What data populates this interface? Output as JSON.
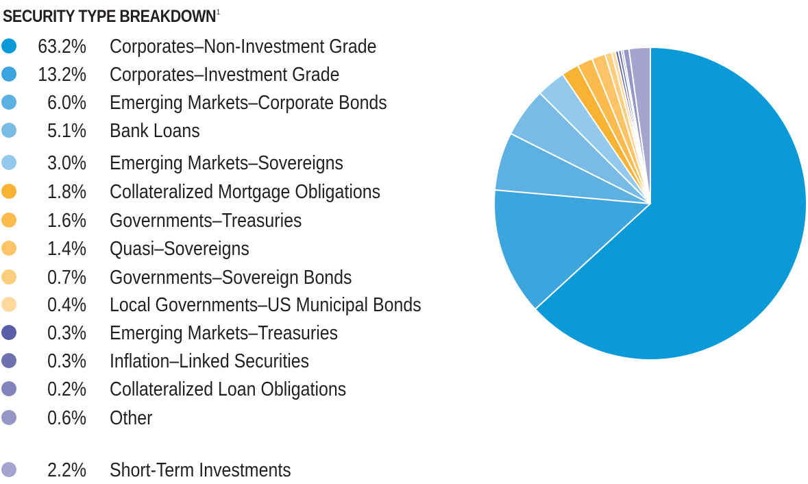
{
  "title": "SECURITY TYPE BREAKDOWN",
  "title_footnote": "1",
  "chart_data": {
    "type": "pie",
    "title": "SECURITY TYPE BREAKDOWN",
    "footnote_marker": "1",
    "legend_position": "left",
    "slices": [
      {
        "label": "Corporates–Non-Investment Grade",
        "value": 63.2,
        "display": "63.2%",
        "color": "#0b9ad8"
      },
      {
        "label": "Corporates–Investment Grade",
        "value": 13.2,
        "display": "13.2%",
        "color": "#3da5dd"
      },
      {
        "label": "Emerging Markets–Corporate Bonds",
        "value": 6.0,
        "display": "6.0%",
        "color": "#5cb0e2"
      },
      {
        "label": "Bank Loans",
        "value": 5.1,
        "display": "5.1%",
        "color": "#78bce6"
      },
      {
        "label": "Emerging Markets–Sovereigns",
        "value": 3.0,
        "display": "3.0%",
        "color": "#93c9ec"
      },
      {
        "label": "Collateralized Mortgage Obligations",
        "value": 1.8,
        "display": "1.8%",
        "color": "#f9b334"
      },
      {
        "label": "Governments–Treasuries",
        "value": 1.6,
        "display": "1.6%",
        "color": "#fbbb4e"
      },
      {
        "label": "Quasi–Sovereigns",
        "value": 1.4,
        "display": "1.4%",
        "color": "#fcc466"
      },
      {
        "label": "Governments–Sovereign Bonds",
        "value": 0.7,
        "display": "0.7%",
        "color": "#fdcd80"
      },
      {
        "label": "Local Governments–US Municipal Bonds",
        "value": 0.4,
        "display": "0.4%",
        "color": "#fed89c"
      },
      {
        "label": "Emerging Markets–Treasuries",
        "value": 0.3,
        "display": "0.3%",
        "color": "#5b5ea6"
      },
      {
        "label": "Inflation–Linked Securities",
        "value": 0.3,
        "display": "0.3%",
        "color": "#6f70b0"
      },
      {
        "label": "Collateralized Loan Obligations",
        "value": 0.2,
        "display": "0.2%",
        "color": "#8384bb"
      },
      {
        "label": "Other",
        "value": 0.6,
        "display": "0.6%",
        "color": "#9595c6"
      },
      {
        "label": "Short-Term Investments",
        "value": 2.2,
        "display": "2.2%",
        "color": "#a5a4d0"
      }
    ]
  }
}
